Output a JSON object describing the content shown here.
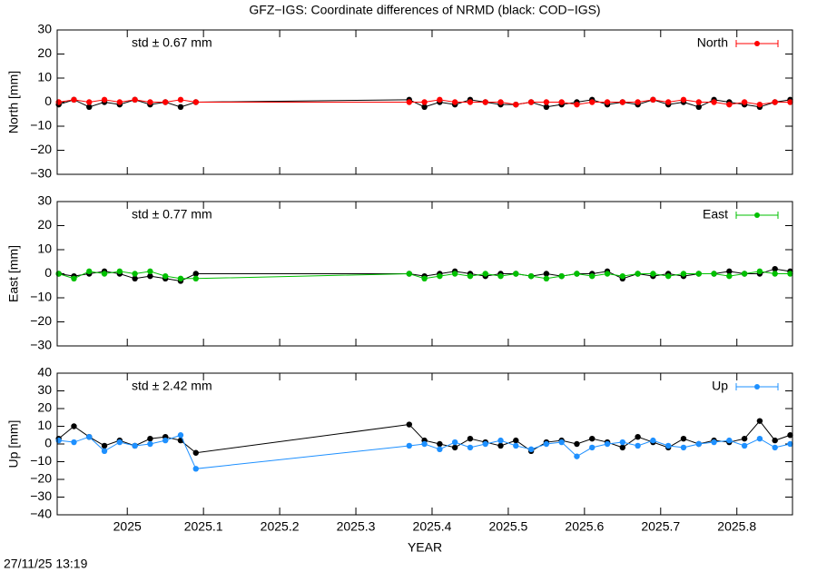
{
  "title": "GFZ−IGS: Coordinate differences of NRMD (black: COD−IGS)",
  "timestamp": "27/11/25 13:19",
  "chart_data": [
    {
      "type": "line",
      "ylabel": "North [mm]",
      "annotation": "std ± 0.67 mm",
      "annotation_color": "#ff0000",
      "xlim": [
        2024.908,
        2025.873
      ],
      "xticks": [
        2025,
        2025.1,
        2025.2,
        2025.3,
        2025.4,
        2025.5,
        2025.6,
        2025.7,
        2025.8
      ],
      "ylim": [
        -30,
        30
      ],
      "yticks": [
        {
          "value": -30,
          "label": "−30"
        },
        {
          "value": -20,
          "label": "−20"
        },
        {
          "value": -10,
          "label": "−10"
        },
        0,
        10,
        20,
        30
      ],
      "x": [
        2024.91,
        2024.93,
        2024.95,
        2024.97,
        2024.99,
        2025.01,
        2025.03,
        2025.05,
        2025.07,
        2025.09,
        2025.37,
        2025.39,
        2025.41,
        2025.43,
        2025.45,
        2025.47,
        2025.49,
        2025.51,
        2025.53,
        2025.55,
        2025.57,
        2025.59,
        2025.61,
        2025.63,
        2025.65,
        2025.67,
        2025.69,
        2025.71,
        2025.73,
        2025.75,
        2025.77,
        2025.79,
        2025.81,
        2025.83,
        2025.85,
        2025.87
      ],
      "series": [
        {
          "color": "#000000",
          "values": [
            -1,
            1,
            -2,
            0,
            -1,
            1,
            -1,
            0,
            -2,
            0,
            1,
            -2,
            0,
            -1,
            1,
            0,
            -1,
            -1,
            0,
            -2,
            -1,
            0,
            1,
            -1,
            0,
            -1,
            1,
            -1,
            0,
            -2,
            1,
            0,
            -1,
            -2,
            0,
            1
          ]
        },
        {
          "name": "North",
          "color": "#ff0000",
          "values": [
            0,
            1,
            0,
            1,
            0,
            1,
            0,
            0,
            1,
            0,
            0,
            0,
            1,
            0,
            0,
            0,
            0,
            -1,
            0,
            0,
            0,
            -1,
            0,
            0,
            0,
            0,
            1,
            0,
            1,
            0,
            0,
            -1,
            0,
            -1,
            0,
            0
          ]
        }
      ]
    },
    {
      "type": "line",
      "ylabel": "East [mm]",
      "annotation": "std ± 0.77 mm",
      "annotation_color": "#00c000",
      "xlim": [
        2024.908,
        2025.873
      ],
      "xticks": [
        2025,
        2025.1,
        2025.2,
        2025.3,
        2025.4,
        2025.5,
        2025.6,
        2025.7,
        2025.8
      ],
      "ylim": [
        -30,
        30
      ],
      "yticks": [
        {
          "value": -30,
          "label": "−30"
        },
        {
          "value": -20,
          "label": "−20"
        },
        {
          "value": -10,
          "label": "−10"
        },
        0,
        10,
        20,
        30
      ],
      "x": [
        2024.91,
        2024.93,
        2024.95,
        2024.97,
        2024.99,
        2025.01,
        2025.03,
        2025.05,
        2025.07,
        2025.09,
        2025.37,
        2025.39,
        2025.41,
        2025.43,
        2025.45,
        2025.47,
        2025.49,
        2025.51,
        2025.53,
        2025.55,
        2025.57,
        2025.59,
        2025.61,
        2025.63,
        2025.65,
        2025.67,
        2025.69,
        2025.71,
        2025.73,
        2025.75,
        2025.77,
        2025.79,
        2025.81,
        2025.83,
        2025.85,
        2025.87
      ],
      "series": [
        {
          "color": "#000000",
          "values": [
            0,
            -1,
            0,
            1,
            0,
            -2,
            -1,
            -2,
            -3,
            0,
            0,
            -1,
            0,
            1,
            0,
            -1,
            0,
            0,
            -1,
            0,
            -1,
            0,
            0,
            1,
            -2,
            0,
            -1,
            0,
            -1,
            0,
            0,
            1,
            0,
            0,
            2,
            1
          ]
        },
        {
          "name": "East",
          "color": "#00c000",
          "values": [
            0,
            -2,
            1,
            0,
            1,
            0,
            1,
            -1,
            -2,
            -2,
            0,
            -2,
            -1,
            0,
            -1,
            0,
            -1,
            0,
            -1,
            -2,
            -1,
            0,
            -1,
            0,
            -1,
            0,
            0,
            -1,
            0,
            0,
            0,
            -1,
            0,
            1,
            0,
            0
          ]
        }
      ]
    },
    {
      "type": "line",
      "ylabel": "Up [mm]",
      "xlabel": "YEAR",
      "annotation": "std ± 2.42 mm",
      "annotation_color": "#1e90ff",
      "xlim": [
        2024.908,
        2025.873
      ],
      "xticks": [
        2025,
        2025.1,
        2025.2,
        2025.3,
        2025.4,
        2025.5,
        2025.6,
        2025.7,
        2025.8
      ],
      "ylim": [
        -40,
        40
      ],
      "yticks": [
        {
          "value": -40,
          "label": "−40"
        },
        {
          "value": -30,
          "label": "−30"
        },
        {
          "value": -20,
          "label": "−20"
        },
        {
          "value": -10,
          "label": "−10"
        },
        0,
        10,
        20,
        30,
        40
      ],
      "x": [
        2024.91,
        2024.93,
        2024.95,
        2024.97,
        2024.99,
        2025.01,
        2025.03,
        2025.05,
        2025.07,
        2025.09,
        2025.37,
        2025.39,
        2025.41,
        2025.43,
        2025.45,
        2025.47,
        2025.49,
        2025.51,
        2025.53,
        2025.55,
        2025.57,
        2025.59,
        2025.61,
        2025.63,
        2025.65,
        2025.67,
        2025.69,
        2025.71,
        2025.73,
        2025.75,
        2025.77,
        2025.79,
        2025.81,
        2025.83,
        2025.85,
        2025.87
      ],
      "series": [
        {
          "color": "#000000",
          "values": [
            3,
            10,
            4,
            -1,
            2,
            -1,
            3,
            4,
            2,
            -5,
            11,
            2,
            0,
            -2,
            3,
            1,
            -1,
            2,
            -4,
            1,
            2,
            0,
            3,
            1,
            -2,
            4,
            1,
            -2,
            3,
            0,
            2,
            1,
            3,
            13,
            2,
            5
          ]
        },
        {
          "name": "Up",
          "color": "#1e90ff",
          "values": [
            2,
            1,
            4,
            -4,
            1,
            -1,
            0,
            2,
            5,
            -14,
            -1,
            0,
            -3,
            1,
            -2,
            0,
            2,
            -1,
            -3,
            0,
            1,
            -7,
            -2,
            0,
            1,
            -1,
            2,
            -1,
            -2,
            0,
            1,
            2,
            -1,
            3,
            -2,
            0
          ]
        }
      ]
    }
  ]
}
